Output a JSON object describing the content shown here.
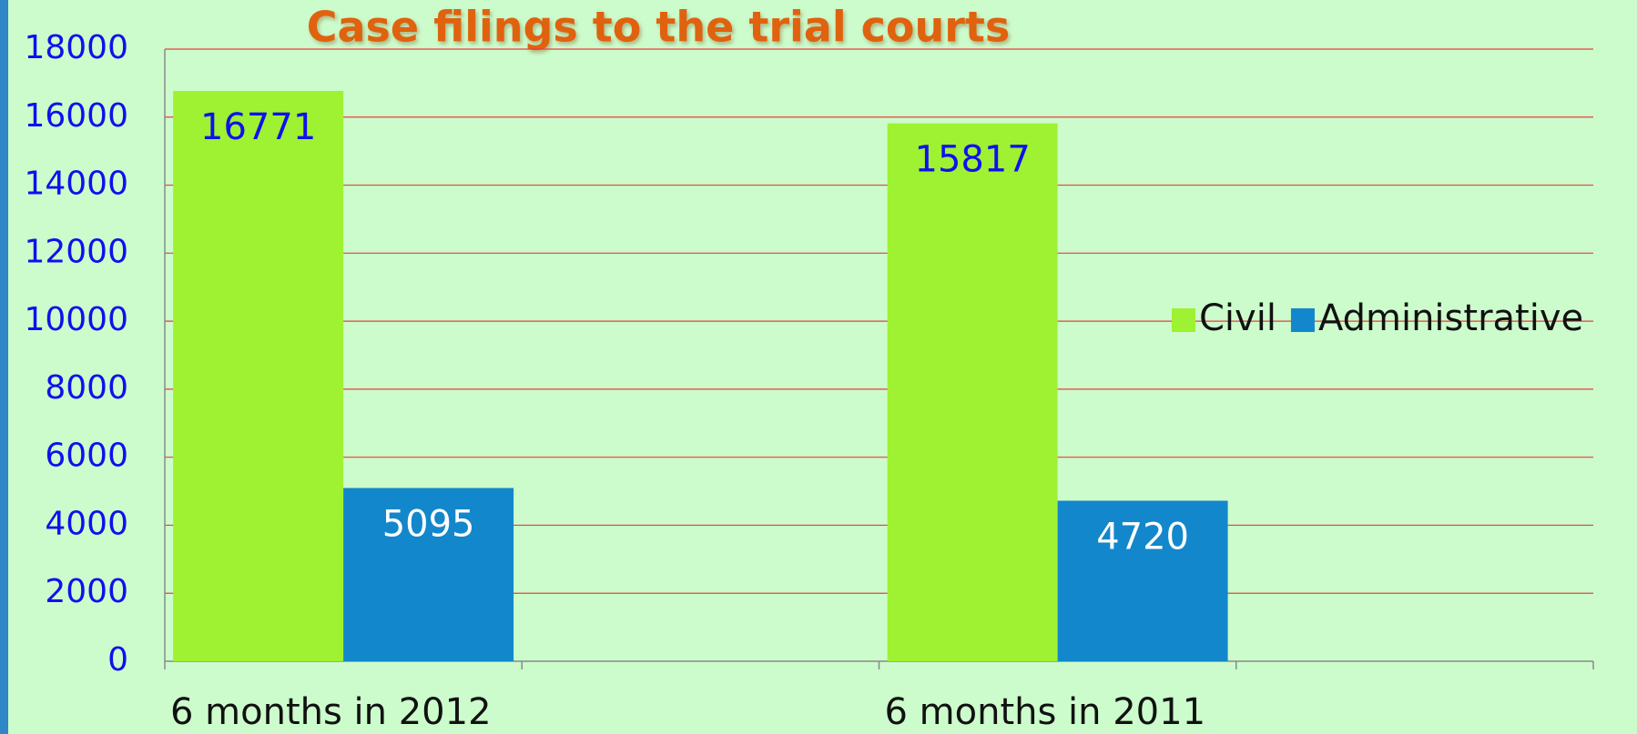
{
  "chart_data": {
    "type": "bar",
    "title": "Case filings to the trial courts",
    "categories": [
      "6 months in 2012",
      null,
      "6 months in 2011",
      null
    ],
    "series": [
      {
        "name": "Civil",
        "color": "#9ef231",
        "label_color": "#1010ee",
        "values": [
          16771,
          null,
          15817,
          null
        ]
      },
      {
        "name": "Administrative",
        "color": "#1387cb",
        "label_color": "#ffffff",
        "values": [
          5095,
          null,
          4720,
          null
        ]
      }
    ],
    "ylim": [
      0,
      18000
    ],
    "yticks": [
      0,
      2000,
      4000,
      6000,
      8000,
      10000,
      12000,
      14000,
      16000,
      18000
    ],
    "grid": true,
    "grid_color": "#e8403c",
    "tick_label_color": "#1010ee",
    "legend": "right"
  }
}
